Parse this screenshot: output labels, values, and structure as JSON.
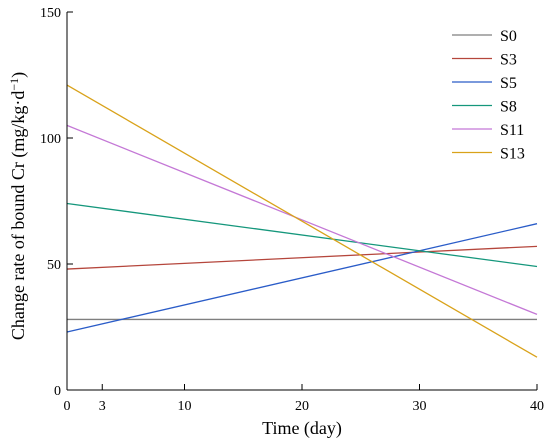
{
  "chart_data": {
    "type": "line",
    "xlabel": "Time (day)",
    "ylabel_main": "Change rate of bound Cr (mg/kg·d",
    "ylabel_sup": "−1",
    "ylabel_end": ")",
    "xlim": [
      0,
      40
    ],
    "ylim": [
      0,
      150
    ],
    "xticks": [
      0,
      3,
      10,
      20,
      30,
      40
    ],
    "xtick_labels": [
      "0",
      "3",
      "10",
      "20",
      "30",
      "40"
    ],
    "yticks": [
      0,
      50,
      100,
      150
    ],
    "ytick_labels": [
      "0",
      "50",
      "100",
      "150"
    ],
    "grid": false,
    "legend_position": "top-right",
    "series": [
      {
        "name": "S0",
        "color": "#7f7f7f",
        "x": [
          0,
          40
        ],
        "y": [
          28,
          28
        ]
      },
      {
        "name": "S3",
        "color": "#b5463c",
        "x": [
          0,
          40
        ],
        "y": [
          48,
          57
        ]
      },
      {
        "name": "S5",
        "color": "#2a5cc8",
        "x": [
          0,
          40
        ],
        "y": [
          23,
          66
        ]
      },
      {
        "name": "S8",
        "color": "#15977c",
        "x": [
          0,
          40
        ],
        "y": [
          74,
          49
        ]
      },
      {
        "name": "S11",
        "color": "#c478d6",
        "x": [
          0,
          40
        ],
        "y": [
          105,
          30
        ]
      },
      {
        "name": "S13",
        "color": "#d9a21a",
        "x": [
          0,
          40
        ],
        "y": [
          121,
          13
        ]
      }
    ]
  }
}
